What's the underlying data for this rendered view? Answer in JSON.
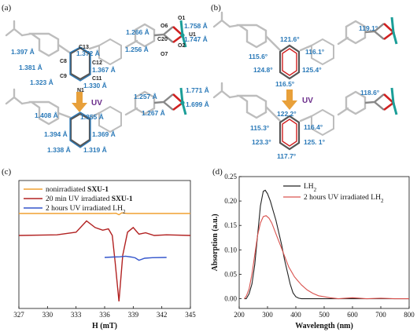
{
  "panels": {
    "a": "(a)",
    "b": "(b)",
    "c": "(c)",
    "d": "(d)"
  },
  "uv_label": "UV",
  "panel_a": {
    "top": {
      "bonds": [
        "1.397 Å",
        "1.372 Å",
        "1.381 Å",
        "1.367 Å",
        "1.323 Å",
        "1.330 Å",
        "1.266 Å",
        "1.256 Å",
        "1.758 Å",
        "1.747 Å"
      ],
      "atoms": [
        "C13",
        "C8",
        "C12",
        "C9",
        "C11",
        "N1",
        "O6",
        "C20",
        "O7",
        "O1",
        "U1",
        "O2"
      ]
    },
    "bottom": {
      "bonds": [
        "1.408 Å",
        "1.355 Å",
        "1.394 Å",
        "1.369 Å",
        "1.338 Å",
        "1.319 Å",
        "1.257 Å",
        "1.267 Å",
        "1.771 Å",
        "1.699 Å"
      ]
    }
  },
  "panel_b": {
    "top": [
      "121.6°",
      "115.6°",
      "116.1°",
      "124.8°",
      "125.4°",
      "116.5°",
      "119.1°"
    ],
    "bottom": [
      "122.2°",
      "115.3°",
      "116.4°",
      "123.3°",
      "125. 1°",
      "117.7°",
      "118.6°"
    ]
  },
  "chart_data": [
    {
      "type": "line",
      "panel": "(c)",
      "title": "",
      "xlabel": "H (mT)",
      "ylabel": "",
      "xlim": [
        327,
        345
      ],
      "xticks": [
        "327",
        "330",
        "333",
        "336",
        "339",
        "342",
        "345"
      ],
      "legend_position": "top-left",
      "colors": [
        "#f0a030",
        "#b22222",
        "#3355cc"
      ],
      "series": [
        {
          "name": "nonirradiated SXU-1",
          "legend_plain": "nonirradiated ",
          "legend_bold": "SXU-1",
          "x": [
            327,
            336.5,
            337.2,
            337.5,
            337.8,
            338.4,
            345
          ],
          "y": [
            0,
            0,
            0.01,
            -0.06,
            0.03,
            0,
            0
          ]
        },
        {
          "name": "20 min UV irradiated SXU-1",
          "legend_plain": "20 min UV irradiated ",
          "legend_bold": "SXU-1",
          "x": [
            327,
            331,
            333,
            334.1,
            335.0,
            335.8,
            336.4,
            336.8,
            337.1,
            337.5,
            337.9,
            338.4,
            339.0,
            339.6,
            340.3,
            341.2,
            342.5,
            345
          ],
          "y": [
            0,
            0.01,
            0.05,
            0.22,
            0.12,
            0.08,
            0.1,
            0.0,
            -0.4,
            -1.0,
            -0.3,
            0.05,
            0.12,
            0.02,
            0.04,
            0.0,
            0.01,
            0
          ]
        },
        {
          "name": "2 hours UV irradiated LH2",
          "legend_plain": "2 hours UV irradiated LH",
          "legend_sub": "2",
          "x": [
            336.0,
            336.8,
            337.6,
            338.2,
            338.8,
            339.2,
            339.6,
            340.2,
            341.0,
            342.5
          ],
          "y": [
            0.0,
            0.02,
            0.03,
            0.06,
            0.02,
            -0.02,
            -0.14,
            -0.04,
            -0.01,
            0.0
          ]
        }
      ]
    },
    {
      "type": "line",
      "panel": "(d)",
      "title": "",
      "xlabel": "Wavelength (nm)",
      "ylabel": "Absorption (a.u.)",
      "xlim": [
        200,
        800
      ],
      "ylim": [
        -0.02,
        0.25
      ],
      "xticks": [
        "200",
        "300",
        "400",
        "500",
        "600",
        "700",
        "800"
      ],
      "yticks": [
        "0.00",
        "0.05",
        "0.10",
        "0.15",
        "0.20",
        "0.25"
      ],
      "legend_position": "top-right",
      "colors": [
        "#222222",
        "#d9534f"
      ],
      "series": [
        {
          "name": "LH2",
          "legend_plain": "LH",
          "legend_sub": "2",
          "x": [
            218,
            225,
            235,
            245,
            255,
            265,
            275,
            285,
            292,
            300,
            310,
            320,
            330,
            340,
            350,
            360,
            370,
            380,
            390,
            400,
            410,
            420,
            450,
            500,
            550,
            600,
            650,
            700,
            750,
            800
          ],
          "y": [
            0.0,
            0.0,
            0.01,
            0.03,
            0.07,
            0.13,
            0.19,
            0.22,
            0.222,
            0.215,
            0.2,
            0.18,
            0.16,
            0.135,
            0.11,
            0.08,
            0.055,
            0.03,
            0.012,
            0.004,
            0.001,
            0.0,
            0.0,
            0.0,
            0.0,
            0.0,
            0.0,
            0.0,
            0.0,
            0.0
          ]
        },
        {
          "name": "2 hours UV irradiated LH2",
          "legend_plain": "2 hours UV irradiated LH",
          "legend_sub": "2",
          "x": [
            218,
            225,
            235,
            245,
            255,
            265,
            275,
            285,
            295,
            305,
            315,
            325,
            335,
            345,
            355,
            365,
            375,
            385,
            395,
            405,
            420,
            440,
            460,
            480,
            500,
            520,
            550,
            600,
            650,
            700,
            750,
            800
          ],
          "y": [
            0.0,
            0.005,
            0.02,
            0.05,
            0.09,
            0.13,
            0.155,
            0.168,
            0.17,
            0.165,
            0.155,
            0.14,
            0.125,
            0.11,
            0.095,
            0.08,
            0.065,
            0.055,
            0.045,
            0.038,
            0.028,
            0.018,
            0.011,
            0.006,
            0.004,
            0.002,
            0.0,
            0.002,
            0.0,
            0.001,
            0.0,
            0.0
          ]
        }
      ]
    }
  ]
}
